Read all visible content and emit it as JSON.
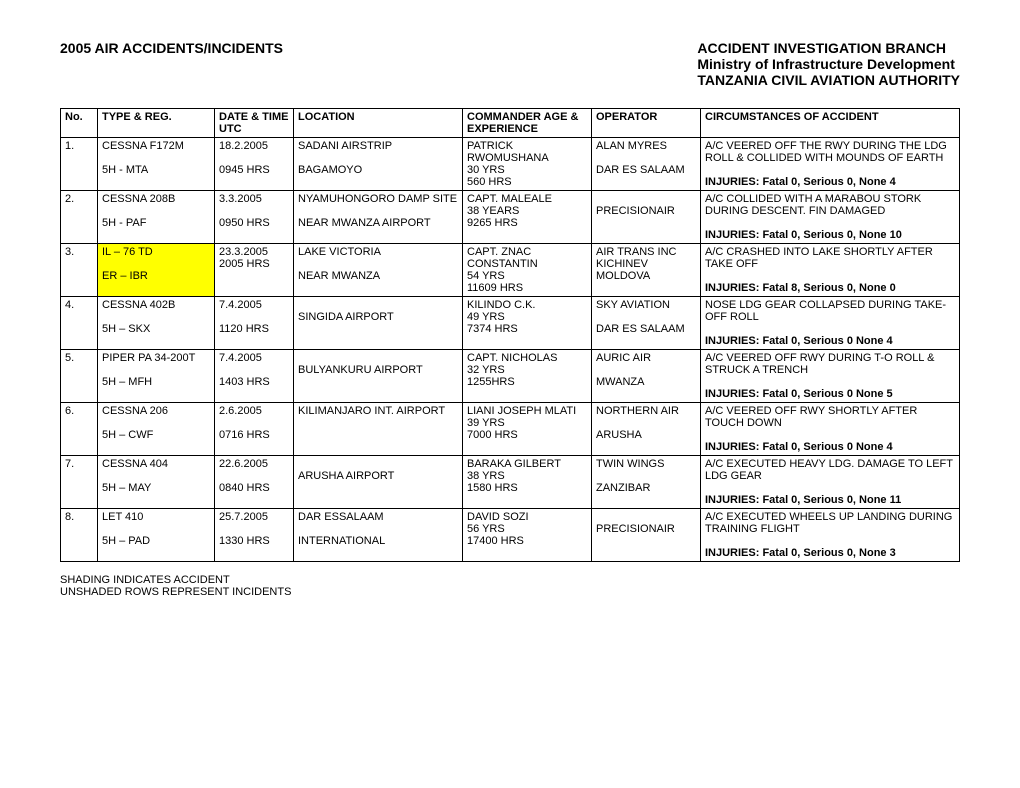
{
  "header": {
    "left": "2005 AIR ACCIDENTS/INCIDENTS",
    "right_line1": "ACCIDENT INVESTIGATION BRANCH",
    "right_line2": "Ministry of Infrastructure Development",
    "right_line3": "TANZANIA CIVIL AVIATION AUTHORITY"
  },
  "columns": {
    "no": "No.",
    "type": "TYPE & REG.",
    "date": "DATE & TIME UTC",
    "location": "LOCATION",
    "commander": "COMMANDER AGE & EXPERIENCE",
    "operator": "OPERATOR",
    "circumstances": "CIRCUMSTANCES OF ACCIDENT"
  },
  "rows": [
    {
      "no": "1.",
      "type_l1": "CESSNA F172M",
      "type_l2": "",
      "type_l3": "5H - MTA",
      "date_l1": "18.2.2005",
      "date_l2": "",
      "date_l3": "0945 HRS",
      "loc_l1": "SADANI AIRSTRIP",
      "loc_l2": "",
      "loc_l3": "BAGAMOYO",
      "cmd_l1": "PATRICK RWOMUSHANA",
      "cmd_l2": "30 YRS",
      "cmd_l3": "560 HRS",
      "op_l1": "ALAN MYRES",
      "op_l2": "",
      "op_l3": "DAR ES SALAAM",
      "circ_l1": "A/C VEERED OFF THE RWY DURING THE LDG ROLL & COLLIDED WITH MOUNDS OF EARTH",
      "circ_l2": "",
      "circ_l3": "INJURIES: Fatal 0, Serious 0, None 4",
      "highlight": false
    },
    {
      "no": "2.",
      "type_l1": "CESSNA 208B",
      "type_l2": "",
      "type_l3": "5H - PAF",
      "date_l1": "3.3.2005",
      "date_l2": "",
      "date_l3": "0950 HRS",
      "loc_l1": "NYAMUHONGORO DAMP SITE",
      "loc_l2": "",
      "loc_l3": "NEAR MWANZA AIRPORT",
      "cmd_l1": "CAPT.  MALEALE",
      "cmd_l2": "38 YEARS",
      "cmd_l3": "9265 HRS",
      "op_l1": "",
      "op_l2": "PRECISIONAIR",
      "op_l3": "",
      "circ_l1": "A/C COLLIDED WITH A MARABOU STORK DURING DESCENT. FIN DAMAGED",
      "circ_l2": "",
      "circ_l3": "INJURIES: Fatal 0, Serious 0, None 10",
      "highlight": false
    },
    {
      "no": "3.",
      "type_l1": "IL – 76 TD",
      "type_l2": "",
      "type_l3": "ER – IBR",
      "date_l1": "23.3.2005",
      "date_l2": "2005 HRS",
      "date_l3": "",
      "loc_l1": "LAKE VICTORIA",
      "loc_l2": "",
      "loc_l3": "NEAR MWANZA",
      "cmd_l1": "CAPT.  ZNAC CONSTANTIN",
      "cmd_l2": "54 YRS",
      "cmd_l3": "11609 HRS",
      "op_l1": "AIR TRANS INC",
      "op_l2": "KICHINEV",
      "op_l3": "MOLDOVA",
      "circ_l1": "A/C CRASHED INTO LAKE SHORTLY AFTER TAKE OFF",
      "circ_l2": "",
      "circ_l3": "INJURIES: Fatal 8, Serious 0, None 0",
      "highlight": true
    },
    {
      "no": "4.",
      "type_l1": "CESSNA 402B",
      "type_l2": "",
      "type_l3": "5H – SKX",
      "date_l1": "7.4.2005",
      "date_l2": "",
      "date_l3": "1120 HRS",
      "loc_l1": "",
      "loc_l2": "SINGIDA AIRPORT",
      "loc_l3": "",
      "cmd_l1": "KILINDO C.K.",
      "cmd_l2": "49 YRS",
      "cmd_l3": "7374 HRS",
      "op_l1": "SKY AVIATION",
      "op_l2": "",
      "op_l3": "DAR ES SALAAM",
      "circ_l1": "NOSE LDG GEAR COLLAPSED DURING TAKE-OFF ROLL",
      "circ_l2": "",
      "circ_l3": "INJURIES: Fatal 0, Serious 0 None 4",
      "highlight": false
    },
    {
      "no": "5.",
      "type_l1": "PIPER PA 34-200T",
      "type_l2": "",
      "type_l3": "5H – MFH",
      "date_l1": "7.4.2005",
      "date_l2": "",
      "date_l3": "1403 HRS",
      "loc_l1": "",
      "loc_l2": "BULYANKURU AIRPORT",
      "loc_l3": "",
      "cmd_l1": "CAPT. NICHOLAS",
      "cmd_l2": "32 YRS",
      "cmd_l3": "1255HRS",
      "op_l1": "AURIC AIR",
      "op_l2": "",
      "op_l3": "MWANZA",
      "circ_l1": "A/C VEERED OFF RWY DURING T-O ROLL & STRUCK A TRENCH",
      "circ_l2": "",
      "circ_l3": "INJURIES: Fatal 0, Serious 0 None 5",
      "highlight": false
    },
    {
      "no": "6.",
      "type_l1": "CESSNA 206",
      "type_l2": "",
      "type_l3": "5H – CWF",
      "date_l1": "2.6.2005",
      "date_l2": "",
      "date_l3": "0716 HRS",
      "loc_l1": "KILIMANJARO INT. AIRPORT",
      "loc_l2": "",
      "loc_l3": "",
      "cmd_l1": "LIANI JOSEPH MLATI",
      "cmd_l2": "39 YRS",
      "cmd_l3": "7000 HRS",
      "op_l1": "NORTHERN AIR",
      "op_l2": "",
      "op_l3": "ARUSHA",
      "circ_l1": "A/C VEERED OFF RWY SHORTLY AFTER TOUCH DOWN",
      "circ_l2": "",
      "circ_l3": "INJURIES: Fatal 0, Serious 0 None 4",
      "highlight": false
    },
    {
      "no": "7.",
      "type_l1": "CESSNA 404",
      "type_l2": "",
      "type_l3": "5H – MAY",
      "date_l1": "22.6.2005",
      "date_l2": "",
      "date_l3": "0840 HRS",
      "loc_l1": "",
      "loc_l2": "ARUSHA AIRPORT",
      "loc_l3": "",
      "cmd_l1": "BARAKA GILBERT",
      "cmd_l2": "38 YRS",
      "cmd_l3": "1580 HRS",
      "op_l1": "TWIN WINGS",
      "op_l2": "",
      "op_l3": "ZANZIBAR",
      "circ_l1": "A/C EXECUTED HEAVY LDG. DAMAGE TO LEFT LDG GEAR",
      "circ_l2": "",
      "circ_l3": "INJURIES: Fatal 0, Serious 0, None 11",
      "highlight": false
    },
    {
      "no": "8.",
      "type_l1": "LET 410",
      "type_l2": "",
      "type_l3": "5H – PAD",
      "date_l1": "25.7.2005",
      "date_l2": "",
      "date_l3": "1330 HRS",
      "loc_l1": "DAR ESSALAAM",
      "loc_l2": "",
      "loc_l3": "INTERNATIONAL",
      "cmd_l1": "DAVID SOZI",
      "cmd_l2": "56 YRS",
      "cmd_l3": "17400 HRS",
      "op_l1": "",
      "op_l2": "PRECISIONAIR",
      "op_l3": "",
      "circ_l1": "A/C EXECUTED WHEELS UP LANDING DURING TRAINING FLIGHT",
      "circ_l2": "",
      "circ_l3": "INJURIES: Fatal 0, Serious 0, None 3",
      "highlight": false
    }
  ],
  "footnote": {
    "line1": "SHADING INDICATES ACCIDENT",
    "line2": "UNSHADED ROWS REPRESENT INCIDENTS"
  }
}
